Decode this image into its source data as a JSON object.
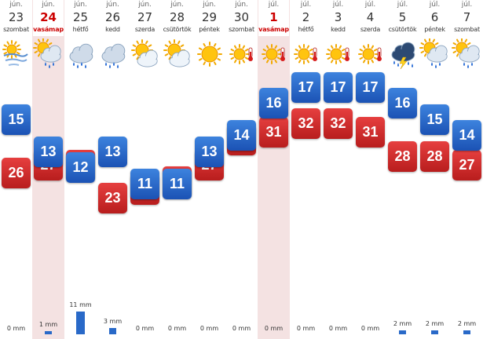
{
  "unit_mm": "mm",
  "days": [
    {
      "month": "jún.",
      "day": "23",
      "weekday": "szombat",
      "icon": "sun-wind-icon",
      "max": "26",
      "min": "15",
      "precip": 0,
      "precip_label": "0 mm",
      "highlight": false,
      "sunday": false
    },
    {
      "month": "jún.",
      "day": "24",
      "weekday": "vasámap",
      "icon": "sun-cloud-rain-icon",
      "max": "27",
      "min": "13",
      "precip": 1,
      "precip_label": "1 mm",
      "highlight": true,
      "sunday": true
    },
    {
      "month": "jún.",
      "day": "25",
      "weekday": "hétfő",
      "icon": "rain-cloud-icon",
      "max": "27",
      "min": "12",
      "precip": 11,
      "precip_label": "11 mm",
      "highlight": false,
      "sunday": false
    },
    {
      "month": "jún.",
      "day": "26",
      "weekday": "kedd",
      "icon": "rain-cloud-icon",
      "max": "23",
      "min": "13",
      "precip": 3,
      "precip_label": "3 mm",
      "highlight": false,
      "sunday": false
    },
    {
      "month": "jún.",
      "day": "27",
      "weekday": "szerda",
      "icon": "sun-cloud-icon",
      "max": "24",
      "min": "11",
      "precip": 0,
      "precip_label": "0 mm",
      "highlight": false,
      "sunday": false
    },
    {
      "month": "jún.",
      "day": "28",
      "weekday": "csütörtök",
      "icon": "sun-cloud-icon",
      "max": "25",
      "min": "11",
      "precip": 0,
      "precip_label": "0 mm",
      "highlight": false,
      "sunday": false
    },
    {
      "month": "jún.",
      "day": "29",
      "weekday": "péntek",
      "icon": "sun-icon",
      "max": "27",
      "min": "13",
      "precip": 0,
      "precip_label": "0 mm",
      "highlight": false,
      "sunday": false
    },
    {
      "month": "jún.",
      "day": "30",
      "weekday": "szombat",
      "icon": "sun-thermometer-icon",
      "max": "30",
      "min": "14",
      "precip": 0,
      "precip_label": "0 mm",
      "highlight": false,
      "sunday": false
    },
    {
      "month": "júl.",
      "day": "1",
      "weekday": "vasámap",
      "icon": "sun-thermometer-icon",
      "max": "31",
      "min": "16",
      "precip": 0,
      "precip_label": "0 mm",
      "highlight": true,
      "sunday": true
    },
    {
      "month": "júl.",
      "day": "2",
      "weekday": "hétfő",
      "icon": "sun-thermometer-icon",
      "max": "32",
      "min": "17",
      "precip": 0,
      "precip_label": "0 mm",
      "highlight": false,
      "sunday": false
    },
    {
      "month": "júl.",
      "day": "3",
      "weekday": "kedd",
      "icon": "sun-thermometer-icon",
      "max": "32",
      "min": "17",
      "precip": 0,
      "precip_label": "0 mm",
      "highlight": false,
      "sunday": false
    },
    {
      "month": "júl.",
      "day": "4",
      "weekday": "szerda",
      "icon": "sun-thermometer-icon",
      "max": "31",
      "min": "17",
      "precip": 0,
      "precip_label": "0 mm",
      "highlight": false,
      "sunday": false
    },
    {
      "month": "júl.",
      "day": "5",
      "weekday": "csütörtök",
      "icon": "thunderstorm-icon",
      "max": "28",
      "min": "16",
      "precip": 2,
      "precip_label": "2 mm",
      "highlight": false,
      "sunday": false
    },
    {
      "month": "júl.",
      "day": "6",
      "weekday": "péntek",
      "icon": "sun-cloud-rain-icon",
      "max": "28",
      "min": "15",
      "precip": 2,
      "precip_label": "2 mm",
      "highlight": false,
      "sunday": false
    },
    {
      "month": "júl.",
      "day": "7",
      "weekday": "szombat",
      "icon": "sun-cloud-rain-icon",
      "max": "27",
      "min": "14",
      "precip": 2,
      "precip_label": "2 mm",
      "highlight": false,
      "sunday": false
    }
  ]
}
